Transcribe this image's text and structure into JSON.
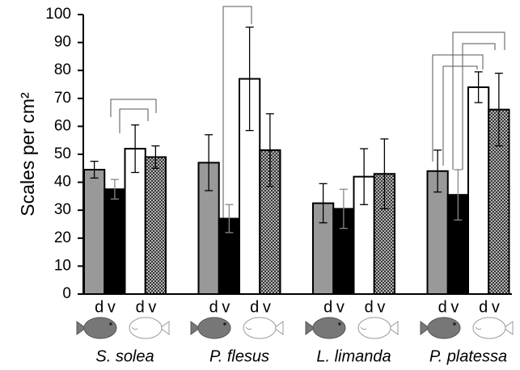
{
  "chart_data": {
    "type": "bar",
    "y_label": "Scales per cm²",
    "categories": [
      "S. solea",
      "P. flesus",
      "L. limanda",
      "P. platessa"
    ],
    "series": [
      {
        "name": "d",
        "color": "#999999",
        "hatch": false,
        "values": [
          44.5,
          47,
          32.5,
          44
        ],
        "errors": [
          3,
          10,
          7,
          7.5
        ]
      },
      {
        "name": "v",
        "color": "#000000",
        "hatch": false,
        "values": [
          37.5,
          27,
          30.5,
          35.5
        ],
        "errors": [
          3.5,
          5,
          7,
          9
        ]
      },
      {
        "name": "d",
        "color": "#ffffff",
        "hatch": false,
        "values": [
          52,
          77,
          42,
          74
        ],
        "errors": [
          8.5,
          18.5,
          10,
          5.5
        ]
      },
      {
        "name": "v",
        "color": "#555555",
        "hatch": true,
        "values": [
          49,
          51.5,
          43,
          66
        ],
        "errors": [
          4,
          13,
          12.5,
          13
        ]
      }
    ],
    "ylim": [
      0,
      100
    ],
    "yticks": [
      0,
      10,
      20,
      30,
      40,
      50,
      60,
      70,
      80,
      90,
      100
    ]
  }
}
